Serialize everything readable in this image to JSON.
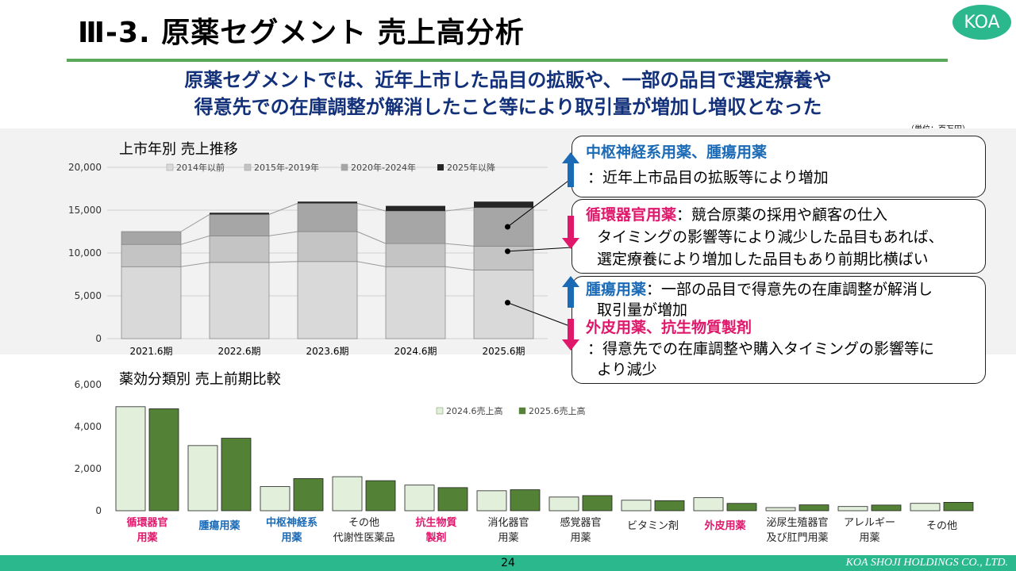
{
  "header": {
    "title": "Ⅲ-3. 原薬セグメント 売上高分析",
    "logo_text": "KOA",
    "lead_line1": "原薬セグメントでは、近年上市した品目の拡販や、一部の品目で選定療養や",
    "lead_line2": "得意先での在庫調整が解消したこと等により取引量が増加し増収となった",
    "unit": "（単位：百万円）"
  },
  "chart_data": [
    {
      "type": "bar",
      "stacked": true,
      "title": "上市年別 売上推移",
      "categories": [
        "2021.6期",
        "2022.6期",
        "2023.6期",
        "2024.6期",
        "2025.6期"
      ],
      "series": [
        {
          "name": "2014年以前",
          "color": "#d9d9d9",
          "values": [
            8400,
            8900,
            9000,
            8400,
            8000
          ]
        },
        {
          "name": "2015年-2019年",
          "color": "#c4c4c4",
          "values": [
            2600,
            3100,
            3500,
            2700,
            2800
          ]
        },
        {
          "name": "2020年-2024年",
          "color": "#a6a6a6",
          "values": [
            1500,
            2500,
            3300,
            3800,
            4500
          ]
        },
        {
          "name": "2025年以降",
          "color": "#262626",
          "values": [
            0,
            200,
            200,
            600,
            700
          ]
        }
      ],
      "ylim": [
        0,
        20000
      ],
      "yticks": [
        "0",
        "5,000",
        "10,000",
        "15,000",
        "20,000"
      ],
      "legend": "top",
      "grid": true
    },
    {
      "type": "bar",
      "title": "薬効分類別 売上前期比較",
      "categories": [
        "循環器官用薬",
        "腫瘍用薬",
        "中枢神経系用薬",
        "その他代謝性医薬品",
        "抗生物質製剤",
        "消化器官用薬",
        "感覚器官用薬",
        "ビタミン剤",
        "外皮用薬",
        "泌尿生殖器官及び肛門用薬",
        "アレルギー用薬",
        "その他"
      ],
      "category_labels": [
        {
          "l1": "循環器官",
          "l2": "用薬",
          "color": "#e0186c"
        },
        {
          "l1": "腫瘍用薬",
          "l2": "",
          "color": "#1b6ab6"
        },
        {
          "l1": "中枢神経系",
          "l2": "用薬",
          "color": "#1b6ab6"
        },
        {
          "l1": "その他",
          "l2": "代謝性医薬品",
          "color": "#222222"
        },
        {
          "l1": "抗生物質",
          "l2": "製剤",
          "color": "#e0186c"
        },
        {
          "l1": "消化器官",
          "l2": "用薬",
          "color": "#222222"
        },
        {
          "l1": "感覚器官",
          "l2": "用薬",
          "color": "#222222"
        },
        {
          "l1": "ビタミン剤",
          "l2": "",
          "color": "#222222"
        },
        {
          "l1": "外皮用薬",
          "l2": "",
          "color": "#e0186c"
        },
        {
          "l1": "泌尿生殖器官",
          "l2": "及び肛門用薬",
          "color": "#222222"
        },
        {
          "l1": "アレルギー",
          "l2": "用薬",
          "color": "#222222"
        },
        {
          "l1": "その他",
          "l2": "",
          "color": "#222222"
        }
      ],
      "series": [
        {
          "name": "2024.6売上高",
          "color": "#e2efda",
          "values": [
            4950,
            3100,
            1150,
            1620,
            1220,
            950,
            650,
            500,
            620,
            150,
            200,
            350
          ]
        },
        {
          "name": "2025.6売上高",
          "color": "#538135",
          "values": [
            4850,
            3450,
            1530,
            1430,
            1100,
            1000,
            720,
            480,
            350,
            280,
            270,
            400
          ]
        }
      ],
      "ylim": [
        0,
        6000
      ],
      "yticks": [
        "0",
        "2,000",
        "4,000",
        "6,000"
      ],
      "legend": "top"
    }
  ],
  "callouts": {
    "c1_title": "中枢神経系用薬、腫瘍用薬",
    "c1_text": "：近年上市品目の拡販等により増加",
    "c2_title": "循環器官用薬",
    "c2_text1": "：競合原薬の採用や顧客の仕入",
    "c2_text2": "タイミングの影響等により減少した品目もあれば、",
    "c2_text3": "選定療養により増加した品目もあり前期比横ばい",
    "c3_title": "腫瘍用薬",
    "c3_text1": "：一部の品目で得意先の在庫調整が解消し",
    "c3_text2": "取引量が増加",
    "c3_title2": "外皮用薬、抗生物質製剤",
    "c3_text3": "：得意先での在庫調整や購入タイミングの影響等に",
    "c3_text4": "より減少"
  },
  "footer": {
    "page": "24",
    "company": "KOA SHOJI HOLDINGS CO., LTD."
  },
  "colors": {
    "accent_green": "#2bb88d",
    "rule_green": "#5aa85a",
    "navy": "#13317a",
    "up_blue": "#1b6ab6",
    "down_pink": "#e0186c"
  },
  "icons": {
    "up": "arrow-up-icon",
    "down": "arrow-down-icon"
  }
}
